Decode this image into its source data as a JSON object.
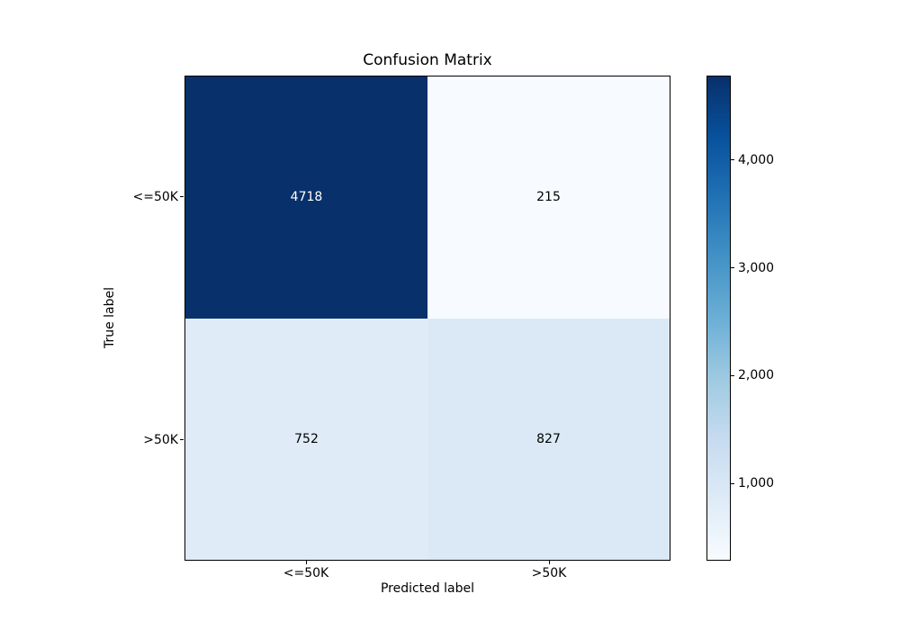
{
  "figure": {
    "background": "#ffffff"
  },
  "chart_data": {
    "type": "heatmap",
    "title": "Confusion Matrix",
    "xlabel": "Predicted label",
    "ylabel": "True label",
    "x_tick_labels": [
      "<=50K",
      ">50K"
    ],
    "y_tick_labels": [
      "<=50K",
      ">50K"
    ],
    "categories": [
      "<=50K",
      ">50K"
    ],
    "matrix": [
      [
        4718,
        215
      ],
      [
        752,
        827
      ]
    ],
    "value_range": [
      215,
      4718
    ],
    "colormap": "Blues",
    "grid": false,
    "cells": [
      {
        "row": 0,
        "col": 0,
        "value": 4718,
        "label": "4718",
        "bg": "#08306b",
        "text_color": "#ffffff"
      },
      {
        "row": 0,
        "col": 1,
        "value": 215,
        "label": "215",
        "bg": "#f7fbff",
        "text_color": "#000000"
      },
      {
        "row": 1,
        "col": 0,
        "value": 752,
        "label": "752",
        "bg": "#dfebf7",
        "text_color": "#000000"
      },
      {
        "row": 1,
        "col": 1,
        "value": 827,
        "label": "827",
        "bg": "#dbe9f6",
        "text_color": "#000000"
      }
    ],
    "colorbar": {
      "min": 215,
      "max": 4718,
      "ticks": [
        {
          "value": 1000,
          "label": "1,000"
        },
        {
          "value": 2000,
          "label": "2,000"
        },
        {
          "value": 3000,
          "label": "3,000"
        },
        {
          "value": 4000,
          "label": "4,000"
        }
      ],
      "gradient_stops": [
        "#f7fbff",
        "#deebf7",
        "#c6dbef",
        "#9ecae1",
        "#6baed6",
        "#4292c6",
        "#2171b5",
        "#08519c",
        "#08306b"
      ]
    }
  }
}
